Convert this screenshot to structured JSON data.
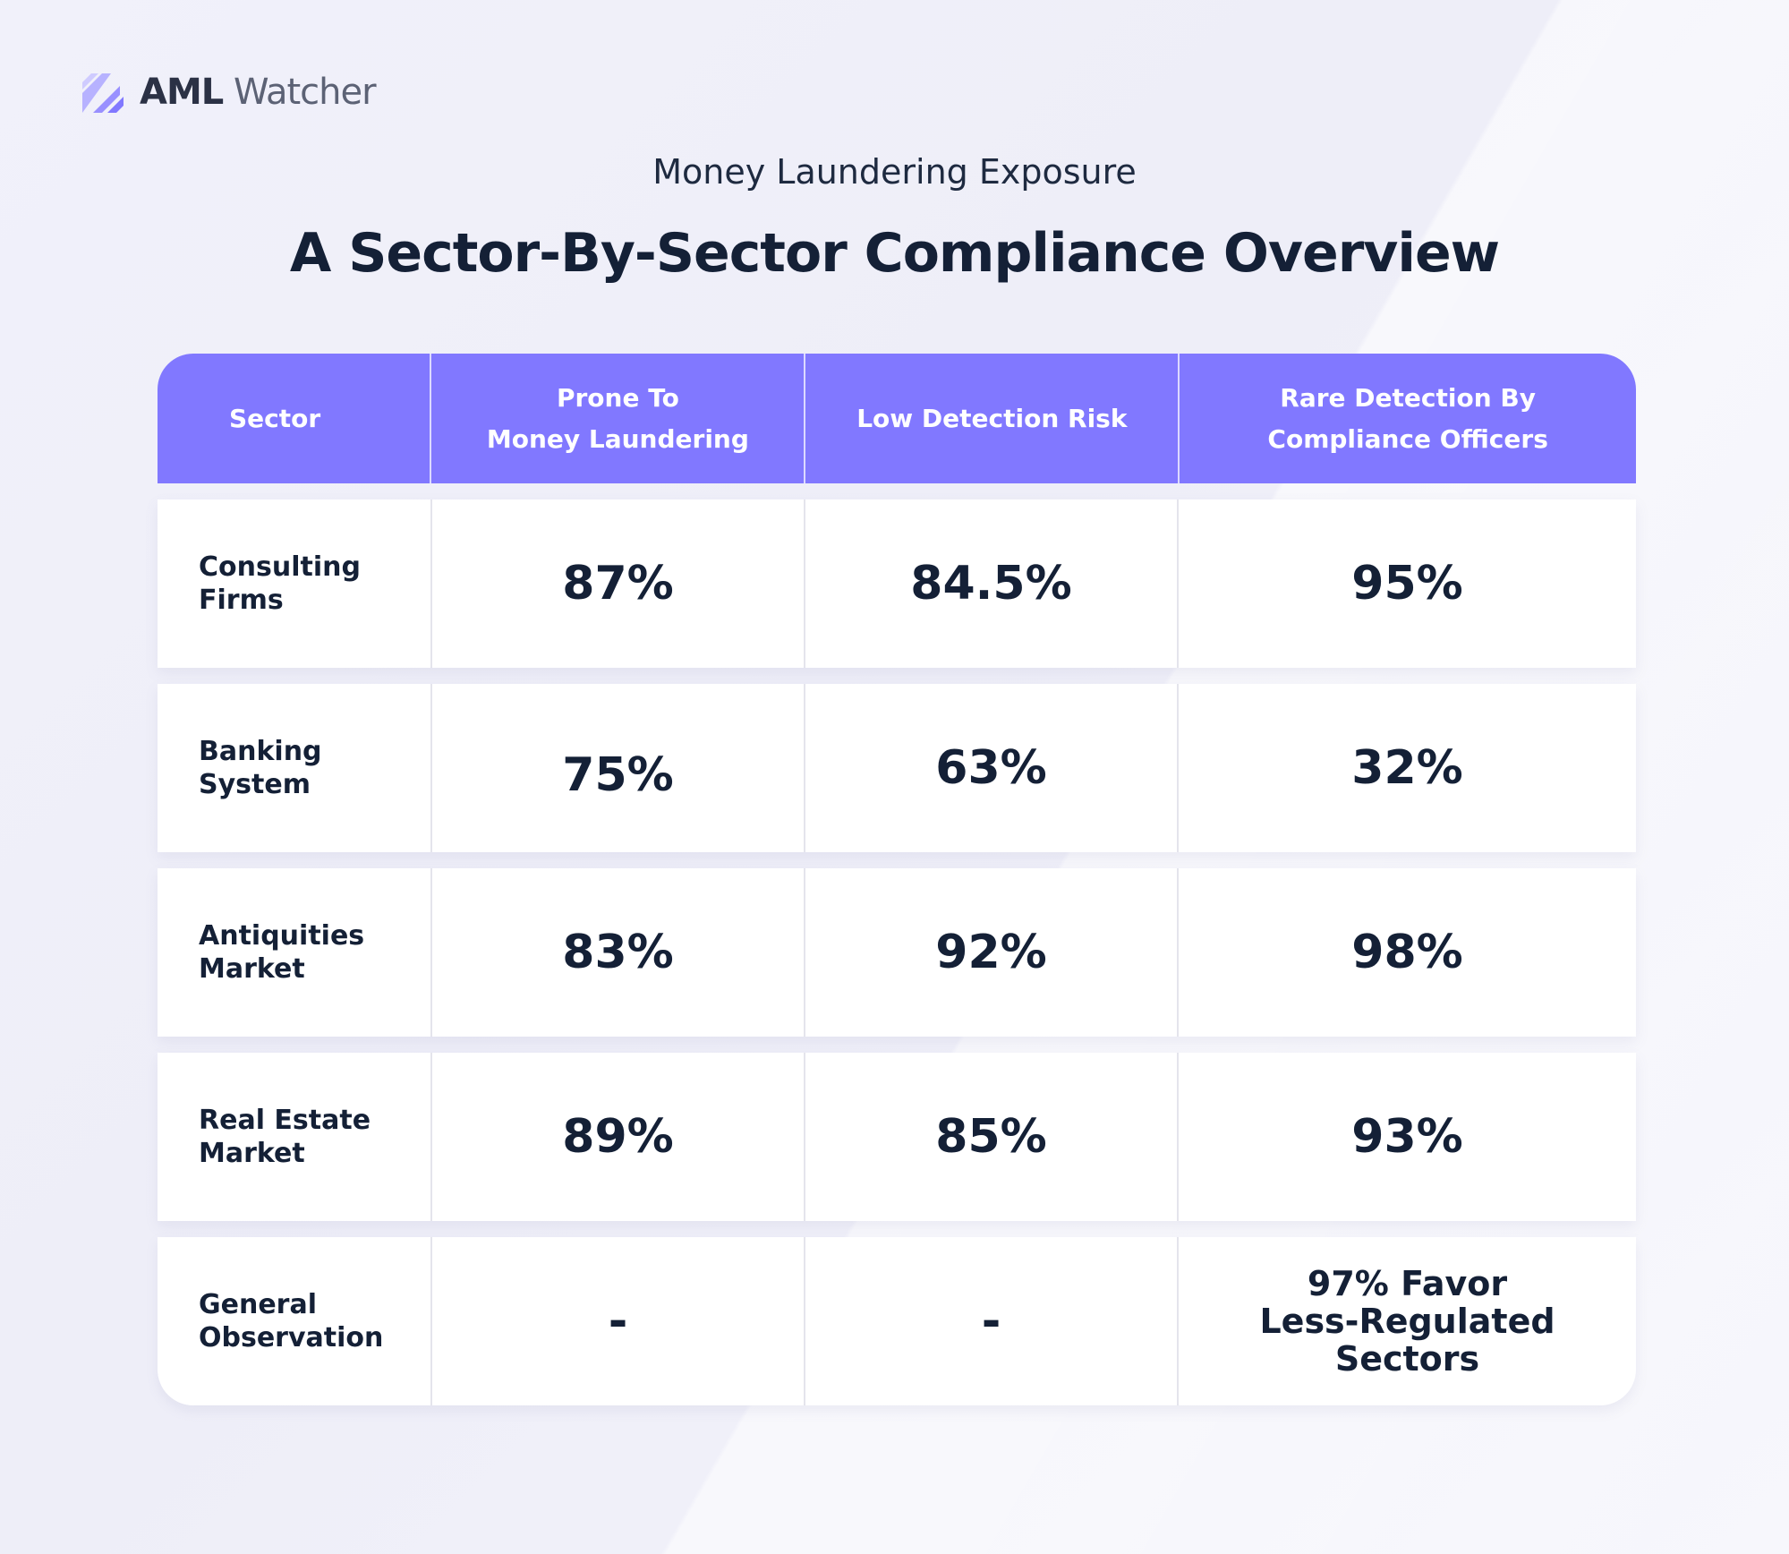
{
  "brand": {
    "name_strong": "AML",
    "name_light": "Watcher",
    "logo_icon": "aml-watcher-logo-icon",
    "accent": "#8178ff"
  },
  "subtitle": "Money Laundering Exposure",
  "title": "A Sector-By-Sector Compliance Overview",
  "chart_data": {
    "type": "table",
    "columns": [
      "Sector",
      "Prone To Money Laundering",
      "Low Detection Risk",
      "Rare Detection By Compliance Officers"
    ],
    "header": {
      "c0": "Sector",
      "c1": "Prone To\nMoney Laundering",
      "c2": "Low Detection Risk",
      "c3": "Rare Detection By\nCompliance Officers"
    },
    "rows": [
      {
        "sector": "Consulting\nFirms",
        "prone": "87%",
        "low_risk": "84.5%",
        "rare": "95%"
      },
      {
        "sector": "Banking\nSystem",
        "prone": "75%",
        "low_risk": "63%",
        "rare": "32%"
      },
      {
        "sector": "Antiquities\nMarket",
        "prone": "83%",
        "low_risk": "92%",
        "rare": "98%"
      },
      {
        "sector": "Real Estate\nMarket",
        "prone": "89%",
        "low_risk": "85%",
        "rare": "93%"
      },
      {
        "sector": "General\nObservation",
        "prone": "-",
        "low_risk": "-",
        "rare": "97% Favor\nLess-Regulated\nSectors"
      }
    ]
  }
}
